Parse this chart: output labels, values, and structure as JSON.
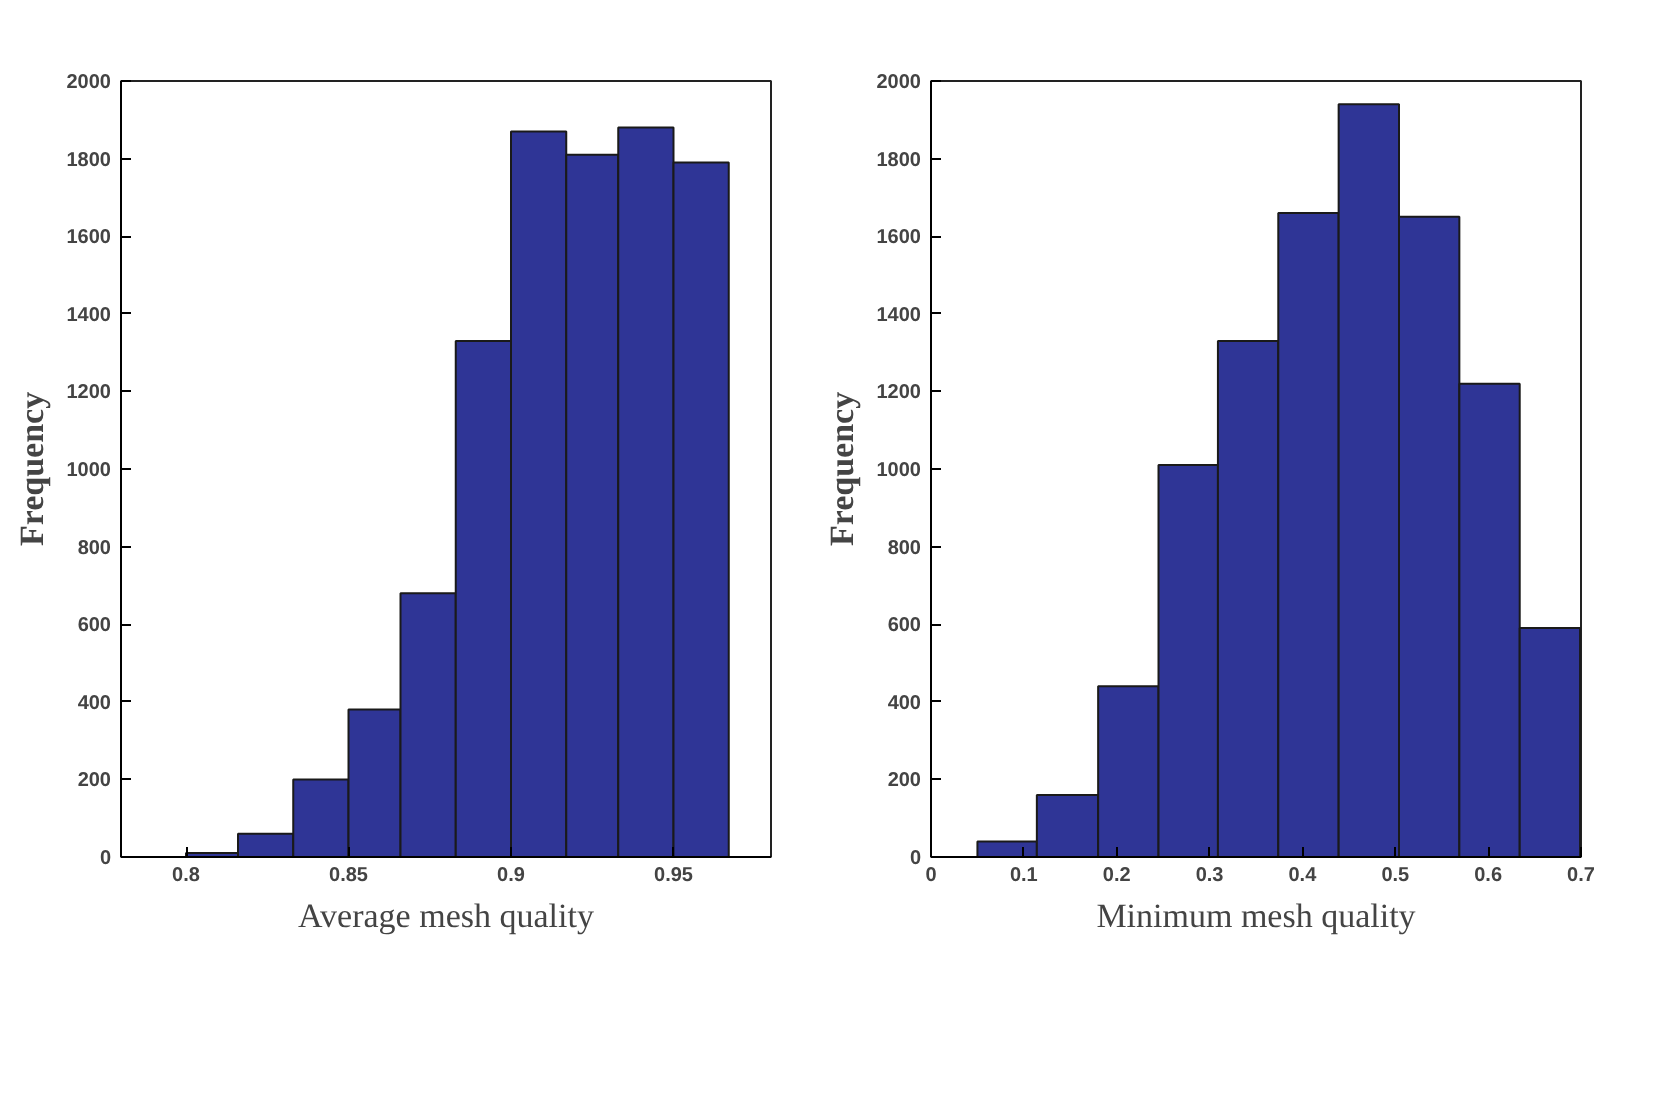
{
  "chart_data": [
    {
      "type": "histogram",
      "xlabel": "Average mesh quality",
      "ylabel": "Frequency",
      "color": "#2f3596",
      "bins": [
        0.8,
        0.816,
        0.833,
        0.85,
        0.866,
        0.883,
        0.9,
        0.917,
        0.933,
        0.95,
        0.967
      ],
      "values": [
        10,
        60,
        200,
        380,
        680,
        1330,
        1870,
        1810,
        1880,
        1790
      ],
      "xlim": [
        0.78,
        0.98
      ],
      "xticks": [
        0.8,
        0.85,
        0.9,
        0.95
      ],
      "ylim": [
        0,
        2000
      ],
      "yticks": [
        0,
        200,
        400,
        600,
        800,
        1000,
        1200,
        1400,
        1600,
        1800,
        2000
      ],
      "grid": false
    },
    {
      "type": "histogram",
      "xlabel": "Minimum mesh quality",
      "ylabel": "Frequency",
      "color": "#2f3596",
      "bins": [
        0.05,
        0.114,
        0.18,
        0.245,
        0.309,
        0.374,
        0.439,
        0.504,
        0.569,
        0.634,
        0.699
      ],
      "values": [
        40,
        160,
        440,
        1010,
        1330,
        1660,
        1940,
        1650,
        1220,
        590
      ],
      "xlim": [
        0,
        0.7
      ],
      "xticks": [
        0,
        0.1,
        0.2,
        0.3,
        0.4,
        0.5,
        0.6,
        0.7
      ],
      "ylim": [
        0,
        2000
      ],
      "yticks": [
        0,
        200,
        400,
        600,
        800,
        1000,
        1200,
        1400,
        1600,
        1800,
        2000
      ],
      "grid": false
    }
  ]
}
